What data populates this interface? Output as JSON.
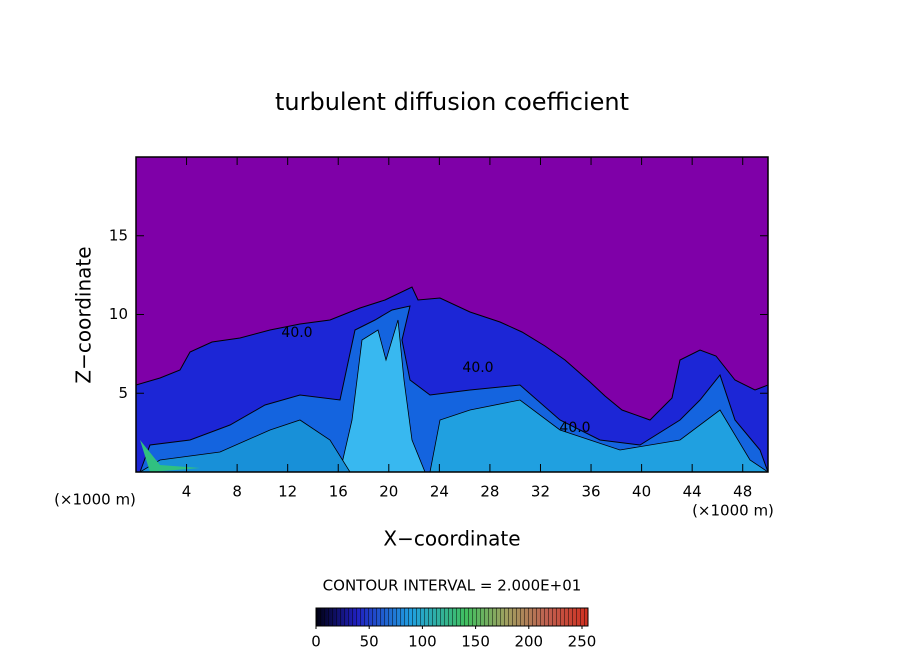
{
  "chart_data": {
    "type": "contour",
    "title": "turbulent diffusion coefficient",
    "xlabel": "X−coordinate",
    "ylabel": "Z−coordinate",
    "xunit": "(×1000 m)",
    "xlim": [
      0,
      50
    ],
    "xticks": [
      4,
      8,
      12,
      16,
      20,
      24,
      28,
      32,
      36,
      40,
      44,
      48
    ],
    "ylim": [
      0,
      20
    ],
    "yticks": [
      5,
      10,
      15
    ],
    "contour_interval": "CONTOUR INTERVAL = 2.000E+01",
    "contour_labels": [
      "40.0",
      "40.0",
      "40.0"
    ],
    "colorbar": {
      "lim": [
        0,
        250
      ],
      "ticks": [
        0,
        50,
        100,
        150,
        200,
        250
      ]
    }
  }
}
